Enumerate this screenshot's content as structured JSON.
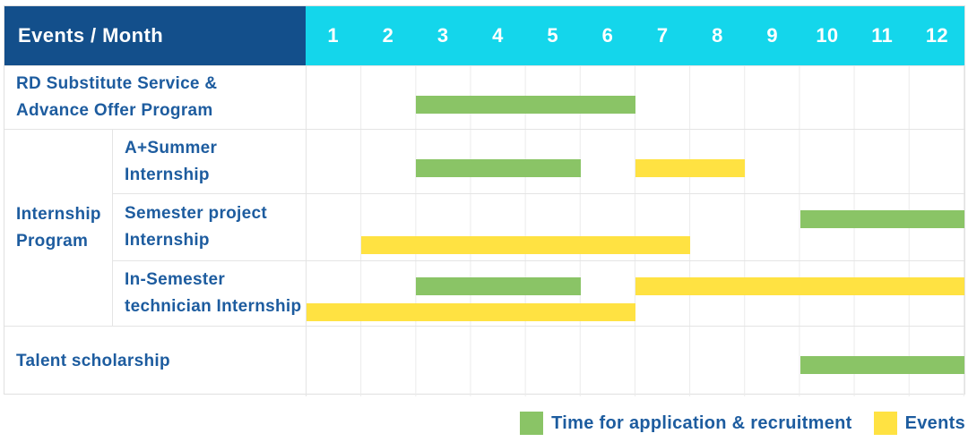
{
  "header": {
    "title": "Events / Month"
  },
  "colors": {
    "header_bg": "#134f8b",
    "months_bg": "#14d6eb",
    "text_blue": "#1d5c9f",
    "application": "#8ac466",
    "event": "#ffe242",
    "grid": "#e4e4e4"
  },
  "legend": [
    {
      "type": "application",
      "label": "Time for application & recruitment"
    },
    {
      "type": "event",
      "label": "Events"
    }
  ],
  "chart_data": {
    "type": "gantt",
    "title": "Events / Month schedule",
    "months": [
      "1",
      "2",
      "3",
      "4",
      "5",
      "6",
      "7",
      "8",
      "9",
      "10",
      "11",
      "12"
    ],
    "x_range": [
      1,
      12
    ],
    "legend_position": "bottom-right",
    "bar_types": {
      "application": "Time for application & recruitment",
      "event": "Events"
    },
    "group_label_lines": [
      "Internship",
      "Program"
    ],
    "rows": [
      {
        "label": "RD Substitute Service & Advance Offer Program",
        "label_lines": [
          "RD Substitute Service &",
          "Advance Offer Program"
        ],
        "group": null,
        "bars": [
          {
            "type": "application",
            "start": 3,
            "end": 6,
            "lane": "mid"
          }
        ]
      },
      {
        "label": "A+Summer Internship",
        "label_lines": [
          "A+Summer",
          "Internship"
        ],
        "group": "Internship Program",
        "bars": [
          {
            "type": "application",
            "start": 3,
            "end": 5,
            "lane": "mid"
          },
          {
            "type": "event",
            "start": 7,
            "end": 8,
            "lane": "mid"
          }
        ]
      },
      {
        "label": "Semester project Internship",
        "label_lines": [
          "Semester project",
          "Internship"
        ],
        "group": "Internship Program",
        "bars": [
          {
            "type": "application",
            "start": 10,
            "end": 12,
            "lane": "top"
          },
          {
            "type": "event",
            "start": 2,
            "end": 7,
            "lane": "bottom"
          }
        ]
      },
      {
        "label": "In-Semester technician Internship",
        "label_lines": [
          "In-Semester",
          "technician Internship"
        ],
        "group": "Internship Program",
        "bars": [
          {
            "type": "application",
            "start": 3,
            "end": 5,
            "lane": "top"
          },
          {
            "type": "event",
            "start": 7,
            "end": 12,
            "lane": "top"
          },
          {
            "type": "event",
            "start": 1,
            "end": 6,
            "lane": "bottom"
          }
        ]
      },
      {
        "label": "Talent scholarship",
        "label_lines": [
          "Talent scholarship"
        ],
        "group": null,
        "bars": [
          {
            "type": "application",
            "start": 10,
            "end": 12,
            "lane": "mid"
          }
        ]
      }
    ]
  }
}
